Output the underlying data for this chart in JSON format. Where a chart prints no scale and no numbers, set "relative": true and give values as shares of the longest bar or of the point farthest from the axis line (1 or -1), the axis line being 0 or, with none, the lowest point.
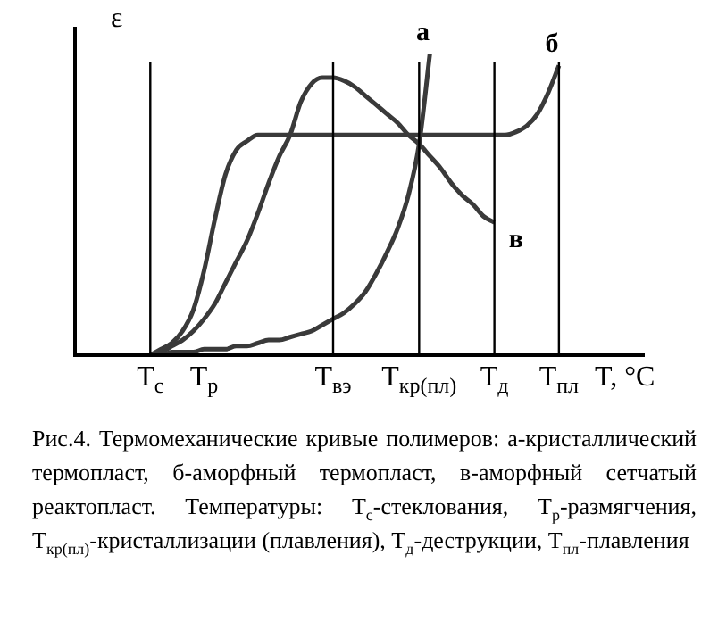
{
  "chart_data": {
    "type": "line",
    "relative": true,
    "ylabel": "ε",
    "xlabel": "T, °C",
    "legend": false,
    "marker": "none",
    "tick_labels": "x",
    "categories": [
      null,
      null,
      null,
      null,
      null,
      null,
      null,
      "T$_{с}$",
      null,
      null,
      null,
      null,
      "T$_{р}$",
      null,
      null,
      null,
      null,
      null,
      null,
      null,
      null,
      null,
      null,
      null,
      "T$_{вэ}$",
      null,
      null,
      null,
      null,
      null,
      null,
      null,
      "T$_{кр(пл)}$",
      null,
      null,
      null,
      null,
      null,
      null,
      "T$_{д}$",
      null,
      null,
      null,
      null,
      null,
      "T$_{пл}$",
      null,
      null,
      null
    ],
    "series": [
      {
        "name": "а",
        "color": "#3a3a3a",
        "values": [
          null,
          null,
          null,
          null,
          null,
          null,
          null,
          0,
          0,
          0.01,
          0.01,
          0.01,
          0.02,
          0.02,
          0.02,
          0.03,
          0.03,
          0.04,
          0.05,
          0.05,
          0.06,
          0.07,
          0.08,
          0.1,
          0.12,
          0.14,
          0.17,
          0.21,
          0.27,
          0.34,
          0.42,
          0.53,
          0.7,
          1,
          null,
          null,
          null,
          null,
          null,
          null,
          null,
          null,
          null,
          null,
          null,
          null,
          null,
          null,
          null
        ]
      },
      {
        "name": "б",
        "color": "#3a3a3a",
        "values": [
          null,
          null,
          null,
          null,
          null,
          null,
          null,
          0,
          0.02,
          0.04,
          0.08,
          0.15,
          0.28,
          0.45,
          0.6,
          0.68,
          0.71,
          0.73,
          0.73,
          0.73,
          0.73,
          0.73,
          0.73,
          0.73,
          0.73,
          0.73,
          0.73,
          0.73,
          0.73,
          0.73,
          0.73,
          0.73,
          0.73,
          0.73,
          0.73,
          0.73,
          0.73,
          0.73,
          0.73,
          0.73,
          0.73,
          0.74,
          0.76,
          0.8,
          0.87,
          0.96,
          null,
          null,
          null
        ]
      },
      {
        "name": "в",
        "color": "#3a3a3a",
        "values": [
          null,
          null,
          null,
          null,
          null,
          null,
          null,
          0,
          0.01,
          0.03,
          0.05,
          0.08,
          0.12,
          0.17,
          0.24,
          0.31,
          0.38,
          0.47,
          0.57,
          0.66,
          0.73,
          0.84,
          0.9,
          0.92,
          0.92,
          0.91,
          0.89,
          0.86,
          0.83,
          0.8,
          0.77,
          0.73,
          0.7,
          0.66,
          0.62,
          0.57,
          0.53,
          0.5,
          0.46,
          0.44,
          null,
          null,
          null,
          null,
          null,
          null,
          null,
          null,
          null
        ]
      }
    ],
    "ref_lines": [
      {
        "axis": "x",
        "value": "T$_{с}$",
        "color": "#000000"
      },
      {
        "axis": "x",
        "value": "T$_{вэ}$",
        "color": "#000000"
      },
      {
        "axis": "x",
        "value": "T$_{кр(пл)}$",
        "color": "#000000"
      },
      {
        "axis": "x",
        "value": "T$_{д}$",
        "color": "#000000"
      },
      {
        "axis": "x",
        "value": "T$_{пл}$",
        "color": "#000000"
      }
    ],
    "annotations": [
      "Рис.4. Термомеханические кривые полимеров: а-кристаллический термопласт, б-аморфный термопласт, в-аморфный сетчатый реактопласт. Температуры: T$_{с}$-стеклования, T$_{р}$-размягчения, T$_{кр(пл)}$-кристаллизации (плавления), T$_{д}$-деструкции, T$_{пл}$-плавления"
    ]
  }
}
